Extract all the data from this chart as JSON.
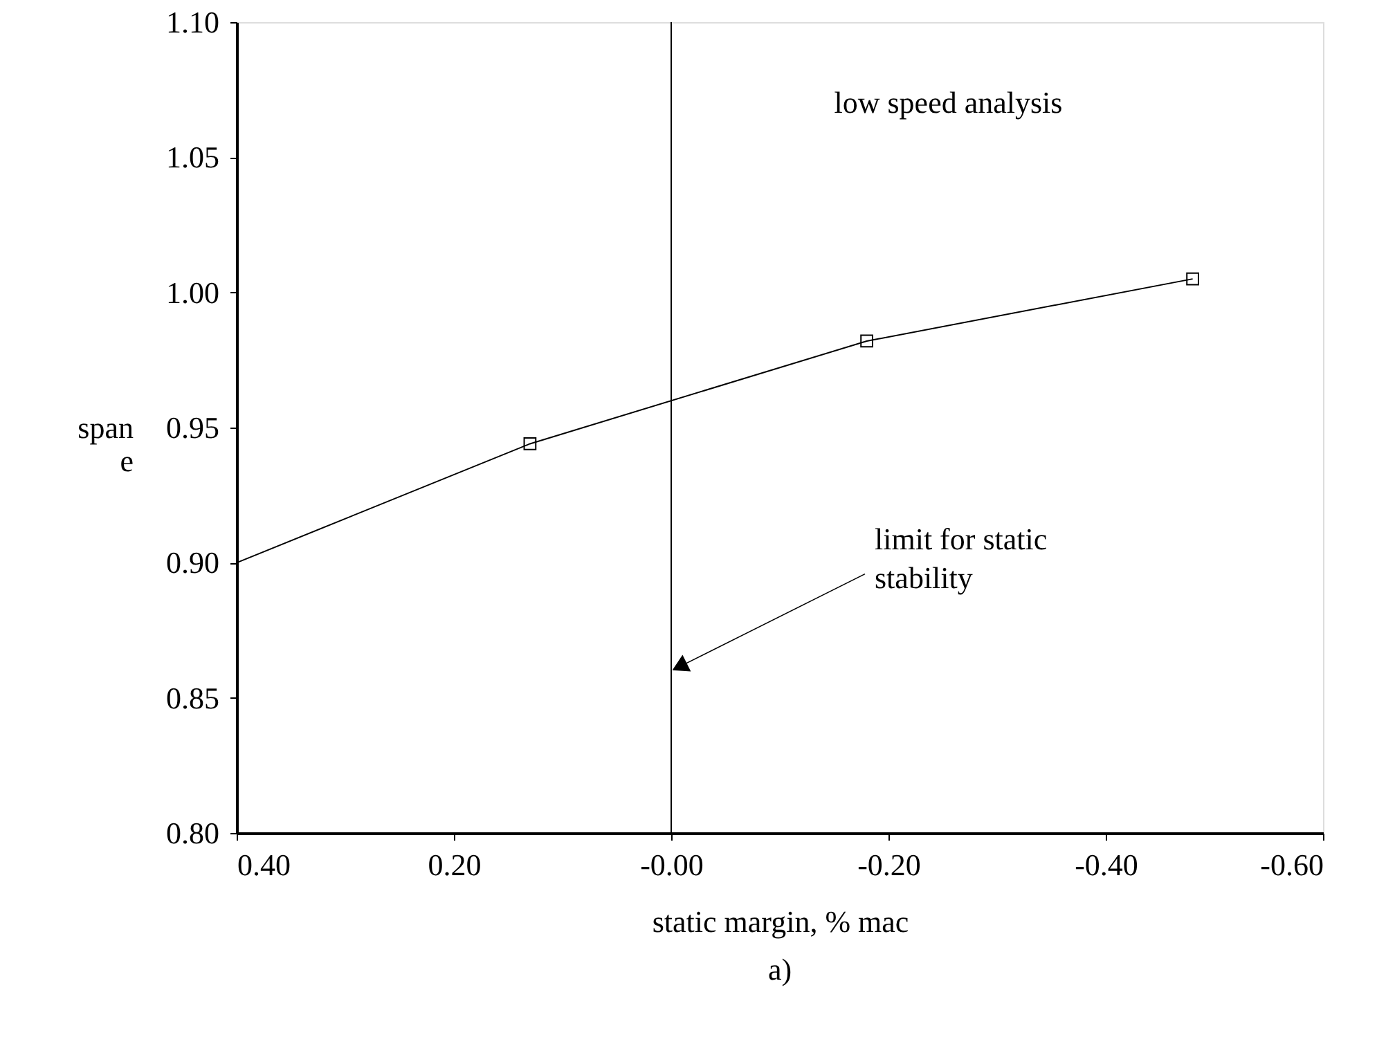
{
  "chart_data": {
    "type": "line",
    "title": "a)",
    "xlabel": "static margin, % mac",
    "ylabel": "span e",
    "xlim": [
      0.4,
      -0.6
    ],
    "xticks": [
      {
        "value": 0.4,
        "label": "0.40"
      },
      {
        "value": 0.2,
        "label": "0.20"
      },
      {
        "value": 0,
        "label": "-0.00"
      },
      {
        "value": -0.2,
        "label": "-0.20"
      },
      {
        "value": -0.4,
        "label": "-0.40"
      },
      {
        "value": -0.6,
        "label": "-0.60"
      }
    ],
    "ylim": [
      0.8,
      1.1
    ],
    "yticks": [
      {
        "value": 0.8,
        "label": "0.80"
      },
      0.85,
      {
        "value": 0.9,
        "label": "0.90"
      },
      0.95,
      {
        "value": 1.0,
        "label": "1.00"
      },
      1.05,
      {
        "value": 1.1,
        "label": "1.10"
      }
    ],
    "grid": false,
    "series": [
      {
        "color": "#000000",
        "marker": "none",
        "line_style": "solid",
        "x": [
          0.4,
          0.13,
          -0.18,
          -0.48
        ],
        "values": [
          0.9,
          0.944,
          0.982,
          1.005
        ]
      },
      {
        "type": "scatter",
        "color": "#000000",
        "marker": "square",
        "x": [
          0.13,
          -0.18,
          -0.48
        ],
        "values": [
          0.944,
          0.982,
          1.005
        ]
      }
    ],
    "ref_lines": [
      {
        "axis": "x",
        "value": 0,
        "color": "#000000"
      }
    ],
    "annotations": [
      "low speed analysis",
      {
        "text": "limit for static stability",
        "x": 0,
        "y": 0.86
      }
    ]
  }
}
